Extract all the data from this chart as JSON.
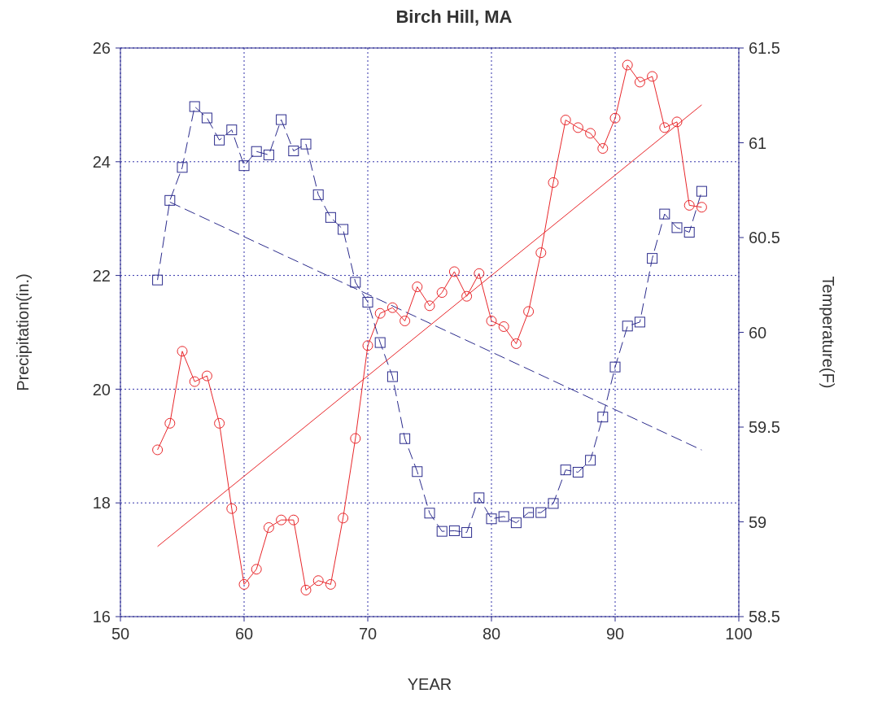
{
  "chart_data": {
    "type": "line",
    "title": "Birch Hill, MA",
    "xlabel": "YEAR",
    "ylabel": "Precipitation(in.)",
    "y2label": "Temperature(F)",
    "xlim": [
      50,
      100
    ],
    "xticks": [
      50,
      60,
      70,
      80,
      90,
      100
    ],
    "ylim": [
      16,
      26
    ],
    "yticks": [
      16,
      18,
      20,
      22,
      24,
      26
    ],
    "y2lim": [
      58.5,
      61.5
    ],
    "y2ticks": [
      58.5,
      59,
      59.5,
      60,
      60.5,
      61,
      61.5
    ],
    "grid": true,
    "legend": false,
    "series": [
      {
        "color": "#2b2b8c",
        "marker": "square",
        "line_style": "dashed",
        "x": [
          53,
          54,
          55,
          56,
          57,
          58,
          59,
          60,
          61,
          62,
          63,
          64,
          65,
          66,
          67,
          68,
          69,
          70,
          71,
          72,
          73,
          74,
          75,
          76,
          77,
          78,
          79,
          80,
          81,
          82,
          83,
          84,
          85,
          86,
          87,
          88,
          89,
          90,
          91,
          92,
          93,
          94,
          95,
          96,
          97
        ],
        "values": [
          21.92,
          23.32,
          23.9,
          24.97,
          24.77,
          24.38,
          24.56,
          23.93,
          24.18,
          24.12,
          24.74,
          24.19,
          24.31,
          23.42,
          23.02,
          22.81,
          21.88,
          21.53,
          20.82,
          20.22,
          19.13,
          18.55,
          17.82,
          17.5,
          17.51,
          17.48,
          18.09,
          17.72,
          17.76,
          17.65,
          17.83,
          17.83,
          17.99,
          18.58,
          18.54,
          18.75,
          19.51,
          20.39,
          21.11,
          21.18,
          22.3,
          23.08,
          22.84,
          22.76,
          23.48
        ]
      },
      {
        "color": "#2b2b8c",
        "marker": "none",
        "line_style": "dashed",
        "x": [
          54,
          97
        ],
        "values": [
          23.29,
          18.93
        ]
      },
      {
        "color": "#e8262a",
        "marker": "circle",
        "line_style": "solid",
        "axis": "y2",
        "x": [
          53,
          54,
          55,
          56,
          57,
          58,
          59,
          60,
          61,
          62,
          63,
          64,
          65,
          66,
          67,
          68,
          69,
          70,
          71,
          72,
          73,
          74,
          75,
          76,
          77,
          78,
          79,
          80,
          81,
          82,
          83,
          84,
          85,
          86,
          87,
          88,
          89,
          90,
          91,
          92,
          93,
          94,
          95,
          96,
          97
        ],
        "values": [
          59.38,
          59.52,
          59.9,
          59.74,
          59.77,
          59.52,
          59.07,
          58.67,
          58.75,
          58.97,
          59.01,
          59.01,
          58.64,
          58.69,
          58.67,
          59.02,
          59.44,
          59.93,
          60.1,
          60.13,
          60.06,
          60.24,
          60.14,
          60.21,
          60.32,
          60.19,
          60.31,
          60.06,
          60.03,
          59.94,
          60.11,
          60.42,
          60.79,
          61.12,
          61.08,
          61.05,
          60.97,
          61.13,
          61.41,
          61.32,
          61.35,
          61.08,
          61.11,
          60.67,
          60.66
        ]
      },
      {
        "color": "#e8262a",
        "marker": "none",
        "line_style": "solid",
        "axis": "y2",
        "x": [
          53,
          97
        ],
        "values": [
          58.87,
          61.2
        ]
      }
    ]
  }
}
